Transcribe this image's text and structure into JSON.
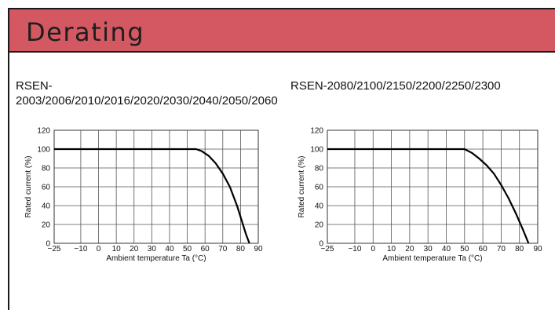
{
  "header": {
    "title": "Derating"
  },
  "chart_data": [
    {
      "type": "line",
      "title": "RSEN-2003/2006/2010/2016/2020/2030/2040/2050/2060",
      "xlabel": "Ambient temperature Ta (°C)",
      "ylabel": "Rated current (%)",
      "xlim": [
        -25,
        90
      ],
      "ylim": [
        0,
        120
      ],
      "x_ticks": [
        "-25",
        "-10",
        "0",
        "10",
        "20",
        "30",
        "40",
        "50",
        "60",
        "70",
        "80",
        "90"
      ],
      "y_ticks": [
        "0",
        "20",
        "40",
        "60",
        "80",
        "100",
        "120"
      ],
      "grid": true,
      "series": [
        {
          "x": [
            -25,
            55,
            58,
            62,
            66,
            70,
            74,
            78,
            81,
            83,
            85
          ],
          "y": [
            100,
            100,
            98,
            93,
            85,
            74,
            60,
            40,
            22,
            10,
            0
          ]
        }
      ]
    },
    {
      "type": "line",
      "title": "RSEN-2080/2100/2150/2200/2250/2300",
      "xlabel": "Ambient temperature Ta (°C)",
      "ylabel": "Rated current (%)",
      "xlim": [
        -25,
        90
      ],
      "ylim": [
        0,
        120
      ],
      "x_ticks": [
        "-25",
        "-10",
        "0",
        "10",
        "20",
        "30",
        "40",
        "50",
        "60",
        "70",
        "80",
        "90"
      ],
      "y_ticks": [
        "0",
        "20",
        "40",
        "60",
        "80",
        "100",
        "120"
      ],
      "grid": true,
      "series": [
        {
          "x": [
            -25,
            50,
            54,
            58,
            62,
            66,
            70,
            74,
            78,
            82,
            85
          ],
          "y": [
            100,
            100,
            96,
            90,
            83,
            74,
            62,
            48,
            32,
            14,
            0
          ]
        }
      ]
    }
  ]
}
